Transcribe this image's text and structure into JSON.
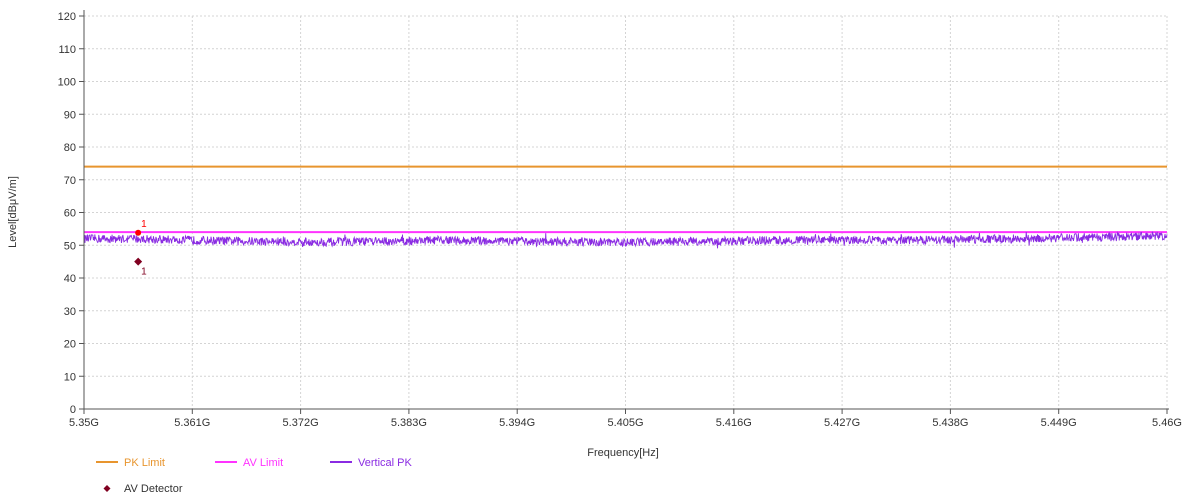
{
  "chart_data": {
    "type": "line",
    "title": "",
    "xlabel": "Frequency[Hz]",
    "ylabel": "Level[dBμV/m]",
    "xlim": [
      5.35,
      5.46
    ],
    "ylim": [
      0,
      120
    ],
    "x_ticks": [
      {
        "value": 5.35,
        "label": "5.35G"
      },
      {
        "value": 5.361,
        "label": "5.361G"
      },
      {
        "value": 5.372,
        "label": "5.372G"
      },
      {
        "value": 5.383,
        "label": "5.383G"
      },
      {
        "value": 5.394,
        "label": "5.394G"
      },
      {
        "value": 5.405,
        "label": "5.405G"
      },
      {
        "value": 5.416,
        "label": "5.416G"
      },
      {
        "value": 5.427,
        "label": "5.427G"
      },
      {
        "value": 5.438,
        "label": "5.438G"
      },
      {
        "value": 5.449,
        "label": "5.449G"
      },
      {
        "value": 5.46,
        "label": "5.46G"
      }
    ],
    "y_ticks": [
      0,
      10,
      20,
      30,
      40,
      50,
      60,
      70,
      80,
      90,
      100,
      110,
      120
    ],
    "grid": true,
    "legend_position": "bottom-left",
    "series": [
      {
        "name": "PK Limit",
        "color": "#e8952e",
        "kind": "line",
        "x": [
          5.35,
          5.46
        ],
        "y": [
          74,
          74
        ]
      },
      {
        "name": "AV Limit",
        "color": "#ff33ff",
        "kind": "line",
        "x": [
          5.35,
          5.46
        ],
        "y": [
          54,
          54
        ]
      },
      {
        "name": "Vertical PK",
        "color": "#8a2be2",
        "kind": "line",
        "x": [
          5.35,
          5.355,
          5.36,
          5.365,
          5.37,
          5.375,
          5.38,
          5.385,
          5.39,
          5.395,
          5.4,
          5.405,
          5.41,
          5.415,
          5.42,
          5.425,
          5.43,
          5.435,
          5.44,
          5.445,
          5.45,
          5.455,
          5.46
        ],
        "y": [
          52.0,
          52.0,
          51.6,
          51.3,
          51.1,
          51.0,
          51.2,
          51.5,
          51.4,
          51.2,
          51.0,
          50.9,
          51.1,
          51.3,
          51.5,
          51.6,
          51.5,
          51.6,
          51.8,
          52.0,
          52.3,
          52.6,
          52.9
        ]
      },
      {
        "name": "AV Detector",
        "color": "#800020",
        "kind": "marker",
        "x": [
          5.3555
        ],
        "y": [
          45.0
        ]
      }
    ],
    "annotations": [
      {
        "label": "1",
        "x": 5.3555,
        "y": 53.8,
        "color": "#ff0000"
      },
      {
        "label": "1",
        "x": 5.3555,
        "y": 45.0,
        "color": "#800020"
      }
    ]
  }
}
